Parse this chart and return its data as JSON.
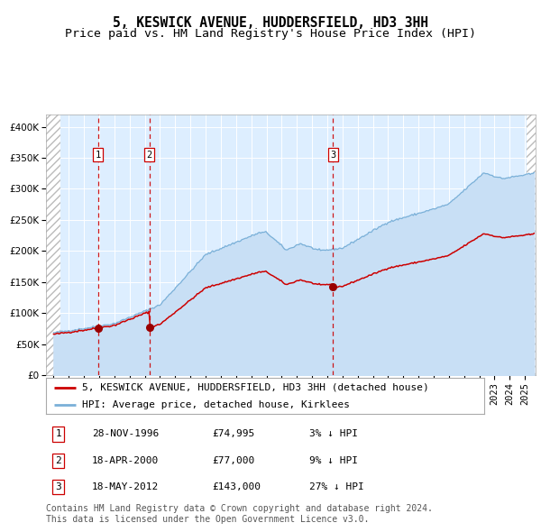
{
  "title": "5, KESWICK AVENUE, HUDDERSFIELD, HD3 3HH",
  "subtitle": "Price paid vs. HM Land Registry's House Price Index (HPI)",
  "ylim": [
    0,
    420000
  ],
  "xlim_start": 1993.5,
  "xlim_end": 2025.7,
  "sale_dates": [
    1996.91,
    2000.3,
    2012.38
  ],
  "sale_prices": [
    74995,
    77000,
    143000
  ],
  "sale_labels": [
    "1",
    "2",
    "3"
  ],
  "hpi_fill_color": "#c8dff5",
  "hpi_line_color": "#7ab0d8",
  "price_color": "#cc0000",
  "sale_marker_color": "#990000",
  "vline_color": "#cc0000",
  "background_color": "#ffffff",
  "plot_bg_color": "#ddeeff",
  "grid_color": "#ffffff",
  "hatch_bg": "#e8e8e8",
  "label_box_color": "#cc0000",
  "legend_label_price": "5, KESWICK AVENUE, HUDDERSFIELD, HD3 3HH (detached house)",
  "legend_label_hpi": "HPI: Average price, detached house, Kirklees",
  "table_data": [
    [
      "1",
      "28-NOV-1996",
      "£74,995",
      "3% ↓ HPI"
    ],
    [
      "2",
      "18-APR-2000",
      "£77,000",
      "9% ↓ HPI"
    ],
    [
      "3",
      "18-MAY-2012",
      "£143,000",
      "27% ↓ HPI"
    ]
  ],
  "footnote": "Contains HM Land Registry data © Crown copyright and database right 2024.\nThis data is licensed under the Open Government Licence v3.0.",
  "title_fontsize": 10.5,
  "subtitle_fontsize": 9.5,
  "tick_fontsize": 7.5,
  "legend_fontsize": 8,
  "table_fontsize": 8,
  "footnote_fontsize": 7
}
